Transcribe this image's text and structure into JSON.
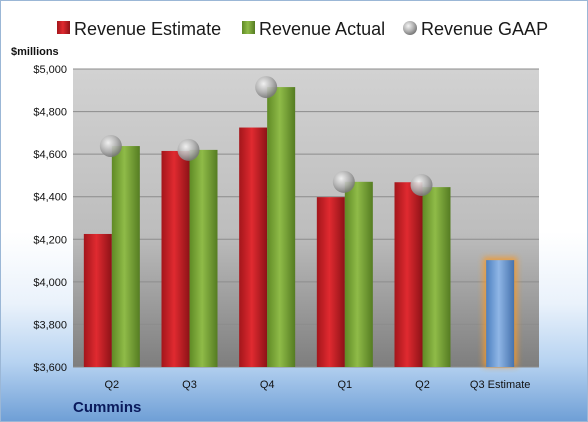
{
  "company_name": "Cummins",
  "y_unit_label": "$millions",
  "colors": {
    "estimate": "#d42027",
    "actual": "#7faa3c",
    "highlight": "#6f9fd6",
    "gaap": "#b3b3b3"
  },
  "chart_data": {
    "type": "bar",
    "categories": [
      "Q2",
      "Q3",
      "Q4",
      "Q1",
      "Q2",
      "Q3 Estimate"
    ],
    "series": [
      {
        "name": "Revenue Estimate",
        "values": [
          4225,
          4615,
          4725,
          4398,
          4468,
          4102
        ]
      },
      {
        "name": "Revenue Actual",
        "values": [
          4638,
          4620,
          4915,
          4470,
          4445,
          null
        ]
      },
      {
        "name": "Revenue GAAP",
        "values": [
          4638,
          4620,
          4915,
          4470,
          4455,
          null
        ]
      }
    ],
    "ylim": [
      3600,
      5000
    ],
    "yticks": [
      "$3,600",
      "$3,800",
      "$4,000",
      "$4,200",
      "$4,400",
      "$4,600",
      "$4,800",
      "$5,000"
    ],
    "ytick_values": [
      3600,
      3800,
      4000,
      4200,
      4400,
      4600,
      4800,
      5000
    ],
    "grid": true,
    "legend_position": "top"
  }
}
